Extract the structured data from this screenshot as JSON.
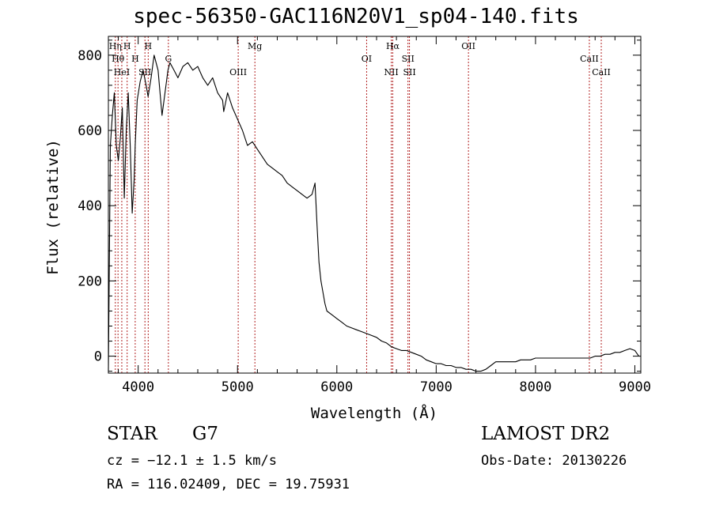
{
  "header": {
    "title": "spec-56350-GAC116N20V1_sp04-140.fits"
  },
  "info": {
    "object_class": "STAR",
    "subclass": "G7",
    "survey": "LAMOST DR2",
    "cz": "cz = −12.1 ± 1.5 km/s",
    "obs_date": "Obs-Date: 20130226",
    "radec": "RA = 116.02409, DEC =  19.75931"
  },
  "colors": {
    "line_marker": "#b22222",
    "spectrum": "#000000",
    "axes": "#000000"
  },
  "chart_data": {
    "type": "line",
    "title": "spec-56350-GAC116N20V1_sp04-140.fits",
    "xlabel": "Wavelength (Å)",
    "ylabel": "Flux (relative)",
    "xlim": [
      3700,
      9060
    ],
    "ylim": [
      -45,
      850
    ],
    "xticks": [
      4000,
      5000,
      6000,
      7000,
      8000,
      9000
    ],
    "yticks": [
      0,
      200,
      400,
      600,
      800
    ],
    "grid": false,
    "series": [
      {
        "values_x": [
          3700,
          3720,
          3740,
          3760,
          3780,
          3800,
          3820,
          3840,
          3860,
          3880,
          3900,
          3920,
          3940,
          3960,
          3970,
          3990,
          4020,
          4050,
          4080,
          4100,
          4130,
          4160,
          4200,
          4240,
          4280,
          4300,
          4320,
          4360,
          4400,
          4450,
          4500,
          4550,
          4600,
          4650,
          4700,
          4750,
          4800,
          4850,
          4861,
          4900,
          4950,
          5000,
          5050,
          5100,
          5150,
          5200,
          5250,
          5300,
          5350,
          5400,
          5450,
          5500,
          5550,
          5600,
          5650,
          5700,
          5750,
          5780,
          5800,
          5820,
          5840,
          5860,
          5880,
          5900,
          5950,
          6000,
          6050,
          6100,
          6150,
          6200,
          6250,
          6300,
          6350,
          6400,
          6450,
          6500,
          6550,
          6600,
          6650,
          6700,
          6750,
          6800,
          6850,
          6900,
          6950,
          7000,
          7050,
          7100,
          7150,
          7200,
          7250,
          7300,
          7350,
          7400,
          7450,
          7500,
          7550,
          7600,
          7650,
          7700,
          7750,
          7800,
          7850,
          7900,
          7950,
          8000,
          8050,
          8100,
          8150,
          8200,
          8250,
          8300,
          8350,
          8400,
          8450,
          8500,
          8550,
          8600,
          8650,
          8700,
          8750,
          8800,
          8850,
          8900,
          8950,
          9000,
          9040
        ],
        "values_y": [
          -40,
          560,
          640,
          700,
          560,
          520,
          580,
          660,
          420,
          600,
          700,
          560,
          380,
          470,
          560,
          680,
          730,
          760,
          720,
          690,
          740,
          800,
          760,
          640,
          720,
          760,
          780,
          760,
          740,
          770,
          780,
          760,
          770,
          740,
          720,
          740,
          700,
          680,
          650,
          700,
          660,
          630,
          600,
          560,
          570,
          550,
          530,
          510,
          500,
          490,
          480,
          460,
          450,
          440,
          430,
          420,
          430,
          460,
          350,
          250,
          200,
          170,
          140,
          120,
          110,
          100,
          90,
          80,
          75,
          70,
          65,
          60,
          55,
          50,
          40,
          35,
          25,
          20,
          15,
          15,
          10,
          5,
          0,
          -10,
          -15,
          -20,
          -20,
          -25,
          -25,
          -30,
          -30,
          -35,
          -35,
          -40,
          -40,
          -35,
          -25,
          -15,
          -15,
          -15,
          -15,
          -15,
          -10,
          -10,
          -10,
          -5,
          -5,
          -5,
          -5,
          -5,
          -5,
          -5,
          -5,
          -5,
          -5,
          -5,
          -5,
          0,
          0,
          5,
          5,
          10,
          10,
          15,
          20,
          15,
          0
        ]
      }
    ],
    "line_markers": [
      {
        "x": 3770,
        "label": "Hη"
      },
      {
        "x": 3797,
        "label": "Hθ"
      },
      {
        "x": 3835,
        "label": "HeI"
      },
      {
        "x": 3889,
        "label": "H"
      },
      {
        "x": 3970,
        "label": "H"
      },
      {
        "x": 4068,
        "label": "SII"
      },
      {
        "x": 4101,
        "label": "H"
      },
      {
        "x": 4304,
        "label": "G"
      },
      {
        "x": 5007,
        "label": "OIII"
      },
      {
        "x": 5175,
        "label": "Mg"
      },
      {
        "x": 6300,
        "label": "OI"
      },
      {
        "x": 6548,
        "label": "NII"
      },
      {
        "x": 6563,
        "label": "Hα"
      },
      {
        "x": 6716,
        "label": "SII"
      },
      {
        "x": 6731,
        "label": "SII"
      },
      {
        "x": 7325,
        "label": "OII"
      },
      {
        "x": 8542,
        "label": "CaII"
      },
      {
        "x": 8662,
        "label": "CaII"
      }
    ]
  }
}
